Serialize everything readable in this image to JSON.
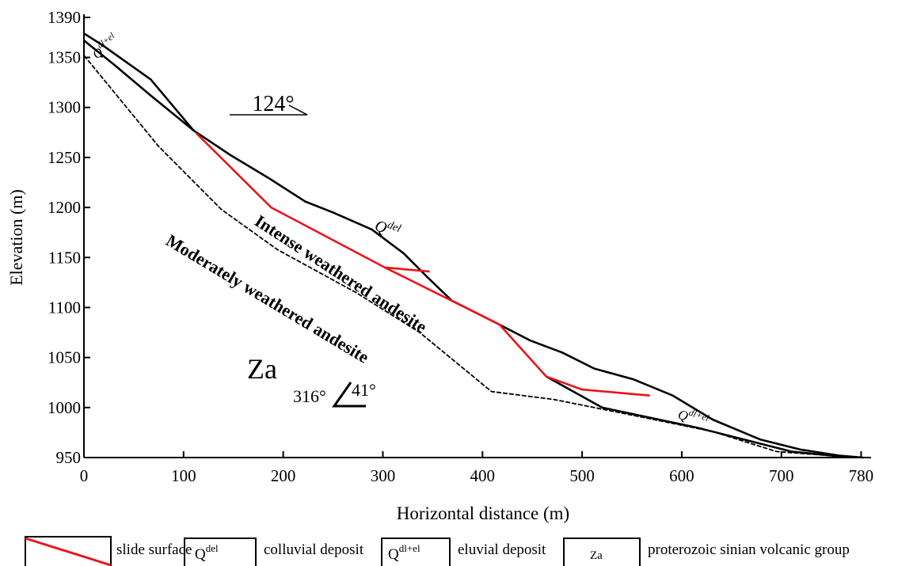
{
  "chart_data": {
    "type": "line",
    "xlabel": "Horizontal distance (m)",
    "ylabel": "Elevation (m)",
    "xlim": [
      0,
      790
    ],
    "ylim": [
      950,
      1390
    ],
    "xticks": [
      0,
      100,
      200,
      300,
      400,
      500,
      600,
      700,
      780
    ],
    "yticks": [
      950,
      1000,
      1050,
      1100,
      1150,
      1200,
      1250,
      1300,
      1350,
      1390
    ],
    "series": [
      {
        "color": "#000000",
        "x": [
          0,
          19,
          67,
          110,
          146,
          186,
          222,
          250,
          289,
          321,
          345,
          369,
          409,
          448,
          480,
          512,
          552,
          591,
          631,
          679,
          719,
          758,
          782
        ],
        "values": [
          1374,
          1362,
          1328,
          1277,
          1253,
          1229,
          1206,
          1195,
          1178,
          1154,
          1130,
          1107,
          1087,
          1067,
          1055,
          1039,
          1028,
          1012,
          988,
          968,
          958,
          952,
          950
        ]
      },
      {
        "color": "#000000",
        "x": [
          0,
          30,
          67,
          110
        ],
        "values": [
          1367,
          1343,
          1312,
          1277
        ]
      },
      {
        "color": "#000000",
        "x": [
          464,
          520,
          615,
          710,
          770
        ],
        "values": [
          1031,
          1000,
          980,
          956,
          950
        ]
      },
      {
        "color": "#000000",
        "dashed": true,
        "x": [
          0,
          75,
          138,
          194,
          273,
          337,
          409,
          472,
          552,
          631,
          695,
          774
        ],
        "values": [
          1352,
          1261,
          1198,
          1158,
          1115,
          1075,
          1016,
          1008,
          992,
          976,
          956,
          950
        ]
      },
      {
        "color": "#e8151b",
        "x": [
          113,
          188,
          302,
          417,
          464,
          500,
          568
        ],
        "values": [
          1274,
          1200,
          1140,
          1083,
          1031,
          1018,
          1012
        ]
      },
      {
        "color": "#e8151b",
        "x": [
          302,
          347
        ],
        "values": [
          1140,
          1136
        ]
      }
    ],
    "annotations": [
      {
        "text": "124°"
      },
      {
        "text": "Q",
        "sup": "del"
      },
      {
        "text": "Intense weathered andesite"
      },
      {
        "text": "Moderately weathered andesite"
      },
      {
        "text": "Za"
      },
      {
        "text": "316°"
      },
      {
        "text": "41°"
      },
      {
        "text": "Q",
        "sup": "dl+el"
      },
      {
        "text": "Q",
        "sup": "dl+el"
      }
    ],
    "legend": [
      {
        "label": "slide surface"
      },
      {
        "symbol": "Q",
        "sup": "del",
        "label": "colluvial deposit"
      },
      {
        "symbol": "Q",
        "sup": "dl+el",
        "label": "eluvial deposit"
      },
      {
        "symbol": "Za",
        "label": "proterozoic sinian volcanic group"
      }
    ]
  }
}
